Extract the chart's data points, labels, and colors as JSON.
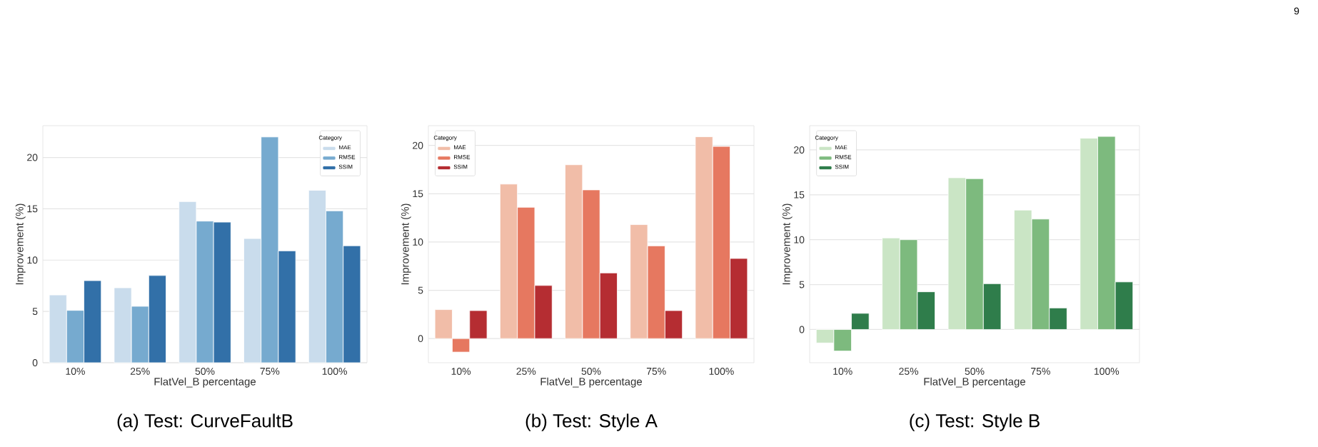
{
  "chart_data": [
    {
      "type": "bar",
      "title": "(a) Test: CurveFaultB",
      "xlabel": "FlatVel_B percentage",
      "ylabel": "Improvement (%)",
      "legend_title": "Category",
      "legend": "top right",
      "grid": "y",
      "categories": [
        "10%",
        "25%",
        "50%",
        "75%",
        "100%"
      ],
      "ylim": [
        0,
        23.1
      ],
      "yticks": [
        0,
        5,
        10,
        15,
        20
      ],
      "series": [
        {
          "name": "MAE",
          "color": "#c9dcec",
          "values": [
            6.6,
            7.3,
            15.7,
            12.1,
            16.8
          ]
        },
        {
          "name": "RMSE",
          "color": "#76aacf",
          "values": [
            5.1,
            5.5,
            13.8,
            22.0,
            14.8
          ]
        },
        {
          "name": "SSIM",
          "color": "#3270a8",
          "values": [
            8.0,
            8.5,
            13.7,
            10.9,
            11.4
          ]
        }
      ]
    },
    {
      "type": "bar",
      "title": "(b) Test: Style A",
      "xlabel": "FlatVel_B percentage",
      "ylabel": "Improvement (%)",
      "legend_title": "Category",
      "legend": "top left",
      "grid": "y",
      "categories": [
        "10%",
        "25%",
        "50%",
        "75%",
        "100%"
      ],
      "ylim": [
        -2.5,
        22.05
      ],
      "yticks": [
        0,
        5,
        10,
        15,
        20
      ],
      "series": [
        {
          "name": "MAE",
          "color": "#f1bda8",
          "values": [
            3.0,
            16.0,
            18.0,
            11.8,
            20.9
          ]
        },
        {
          "name": "RMSE",
          "color": "#e67860",
          "values": [
            -1.4,
            13.6,
            15.4,
            9.6,
            19.9
          ]
        },
        {
          "name": "SSIM",
          "color": "#b52d32",
          "values": [
            2.9,
            5.5,
            6.8,
            2.9,
            8.3
          ]
        }
      ]
    },
    {
      "type": "bar",
      "title": "(c) Test: Style B",
      "xlabel": "FlatVel_B percentage",
      "ylabel": "Improvement (%)",
      "legend_title": "Category",
      "legend": "top left",
      "grid": "y",
      "categories": [
        "10%",
        "25%",
        "50%",
        "75%",
        "100%"
      ],
      "ylim": [
        -3.7,
        22.7
      ],
      "yticks": [
        0,
        5,
        10,
        15,
        20
      ],
      "annotations": [
        "9"
      ],
      "series": [
        {
          "name": "MAE",
          "color": "#cae5c5",
          "values": [
            -1.5,
            10.2,
            16.9,
            13.3,
            21.3
          ]
        },
        {
          "name": "RMSE",
          "color": "#7dba7e",
          "values": [
            -2.4,
            10.0,
            16.8,
            12.3,
            21.5
          ]
        },
        {
          "name": "SSIM",
          "color": "#2f7d4b",
          "values": [
            1.8,
            4.2,
            5.1,
            2.4,
            5.3
          ]
        }
      ]
    }
  ]
}
